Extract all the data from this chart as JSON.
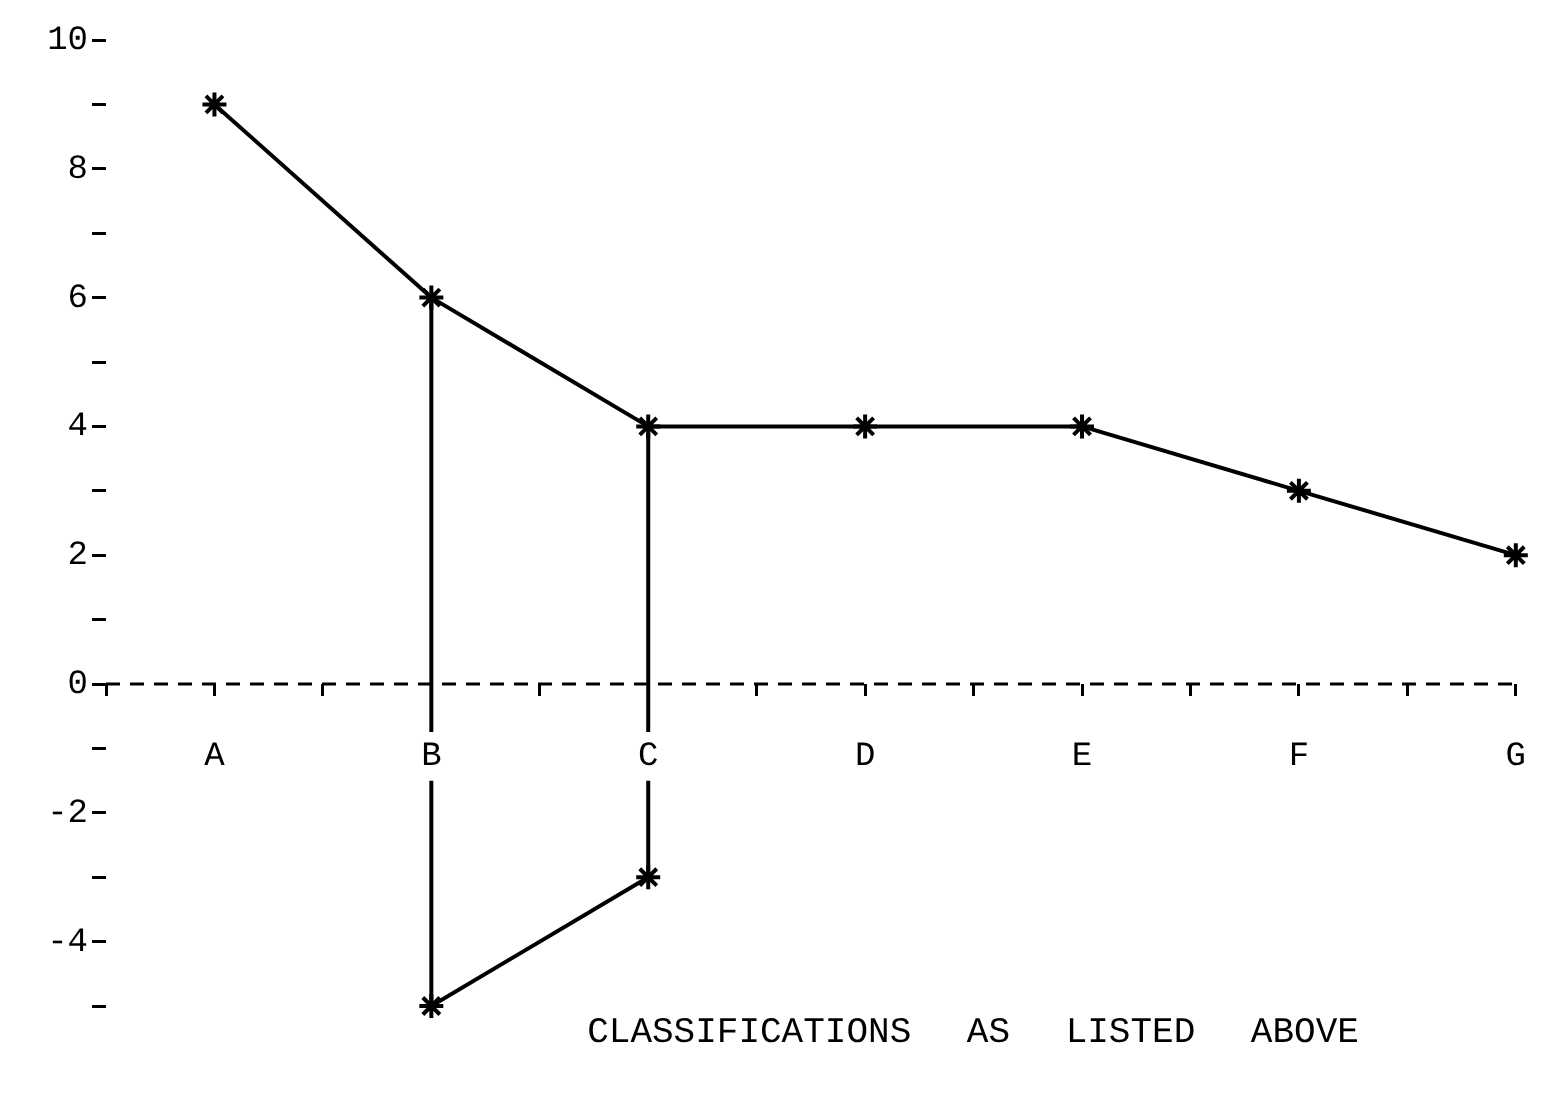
{
  "chart_data": {
    "type": "line",
    "xlabel": "CLASSIFICATIONS AS LISTED ABOVE",
    "categories": [
      "A",
      "B",
      "C",
      "D",
      "E",
      "F",
      "G"
    ],
    "series": [
      {
        "color": "#000000",
        "values": [
          9,
          6,
          4,
          4,
          4,
          3,
          2
        ],
        "errors": [
          null,
          [
            -5,
            6
          ],
          [
            -3,
            4
          ],
          null,
          null,
          null,
          null
        ]
      },
      {
        "color": "#000000",
        "values": [
          null,
          -5,
          -3,
          null,
          null,
          null,
          null
        ]
      }
    ],
    "ylim": [
      -5,
      10
    ],
    "yticks": [
      10,
      {
        "value": 9,
        "label": null
      },
      8,
      {
        "value": 7,
        "label": null
      },
      6,
      {
        "value": 5,
        "label": null
      },
      4,
      {
        "value": 3,
        "label": null
      },
      2,
      {
        "value": 1,
        "label": null
      },
      0,
      {
        "value": -1,
        "label": null
      },
      -2,
      {
        "value": -3,
        "label": null
      },
      -4,
      {
        "value": -5,
        "label": null
      }
    ],
    "ref_lines": [
      {
        "axis": "y",
        "value": 0,
        "color": "#000000",
        "line_style": "dashed"
      }
    ],
    "marker": "cross",
    "line_style": "solid"
  }
}
